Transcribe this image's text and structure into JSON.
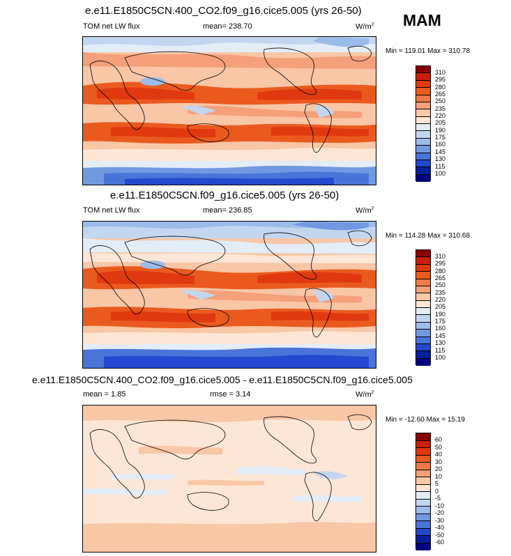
{
  "season": "MAM",
  "panels": [
    {
      "id": "top",
      "title": "e.e11.E1850C5CN.400_CO2.f09_g16.cice5.005 (yrs 26-50)",
      "left_label": "TOM net LW flux",
      "mid_label": "mean= 238.70",
      "units": "W/m",
      "units_sup": "2",
      "minmax": "Min = 119.01 Max = 310.78",
      "colorbar": {
        "labels": [
          "310",
          "295",
          "280",
          "265",
          "250",
          "235",
          "220",
          "205",
          "190",
          "175",
          "160",
          "145",
          "130",
          "115",
          "100"
        ],
        "colors": [
          "#8b0000",
          "#c81e0a",
          "#e0390f",
          "#ea5a1f",
          "#f07a45",
          "#f5a07a",
          "#f9c6a6",
          "#fde6d6",
          "#e3edf8",
          "#c3d6f0",
          "#9bbce8",
          "#7199e0",
          "#4a74d8",
          "#2448d0",
          "#0a1f9e",
          "#000080"
        ]
      }
    },
    {
      "id": "middle",
      "title": "e.e11.E1850C5CN.f09_g16.cice5.005 (yrs 26-50)",
      "left_label": "TOM net LW flux",
      "mid_label": "mean= 236.85",
      "units": "W/m",
      "units_sup": "2",
      "minmax": "Min = 114.28 Max = 310.68",
      "colorbar": {
        "labels": [
          "310",
          "295",
          "280",
          "265",
          "250",
          "235",
          "220",
          "205",
          "190",
          "175",
          "160",
          "145",
          "130",
          "115",
          "100"
        ],
        "colors": [
          "#8b0000",
          "#c81e0a",
          "#e0390f",
          "#ea5a1f",
          "#f07a45",
          "#f5a07a",
          "#f9c6a6",
          "#fde6d6",
          "#e3edf8",
          "#c3d6f0",
          "#9bbce8",
          "#7199e0",
          "#4a74d8",
          "#2448d0",
          "#0a1f9e",
          "#000080"
        ]
      }
    },
    {
      "id": "bottom",
      "title": "e.e11.E1850C5CN.400_CO2.f09_g16.cice5.005 - e.e11.E1850C5CN.f09_g16.cice5.005",
      "left_label": "mean =   1.85",
      "mid_label": "rmse =   3.14",
      "units": "W/m",
      "units_sup": "2",
      "minmax": "Min = -12.60 Max =  15.19",
      "colorbar": {
        "labels": [
          "60",
          "50",
          "40",
          "30",
          "20",
          "10",
          "5",
          "0",
          "-5",
          "-10",
          "-20",
          "-30",
          "-40",
          "-50",
          "-60"
        ],
        "colors": [
          "#8b0000",
          "#c81e0a",
          "#e0390f",
          "#ea5a1f",
          "#f07a45",
          "#f5a07a",
          "#f9c6a6",
          "#fde6d6",
          "#e3edf8",
          "#c3d6f0",
          "#9bbce8",
          "#7199e0",
          "#4a74d8",
          "#2448d0",
          "#0a1f9e",
          "#000080"
        ]
      }
    }
  ],
  "chart_data": [
    {
      "type": "heatmap",
      "title": "e.e11.E1850C5CN.400_CO2.f09_g16.cice5.005 (yrs 26-50)",
      "variable": "TOM net LW flux",
      "units": "W/m2",
      "mean": 238.7,
      "min": 119.01,
      "max": 310.78,
      "contour_levels": [
        100,
        115,
        130,
        145,
        160,
        175,
        190,
        205,
        220,
        235,
        250,
        265,
        280,
        295,
        310
      ]
    },
    {
      "type": "heatmap",
      "title": "e.e11.E1850C5CN.f09_g16.cice5.005 (yrs 26-50)",
      "variable": "TOM net LW flux",
      "units": "W/m2",
      "mean": 236.85,
      "min": 114.28,
      "max": 310.68,
      "contour_levels": [
        100,
        115,
        130,
        145,
        160,
        175,
        190,
        205,
        220,
        235,
        250,
        265,
        280,
        295,
        310
      ]
    },
    {
      "type": "heatmap",
      "title": "e.e11.E1850C5CN.400_CO2.f09_g16.cice5.005 - e.e11.E1850C5CN.f09_g16.cice5.005",
      "units": "W/m2",
      "mean": 1.85,
      "rmse": 3.14,
      "min": -12.6,
      "max": 15.19,
      "contour_levels": [
        -60,
        -50,
        -40,
        -30,
        -20,
        -10,
        -5,
        0,
        5,
        10,
        20,
        30,
        40,
        50,
        60
      ]
    }
  ]
}
